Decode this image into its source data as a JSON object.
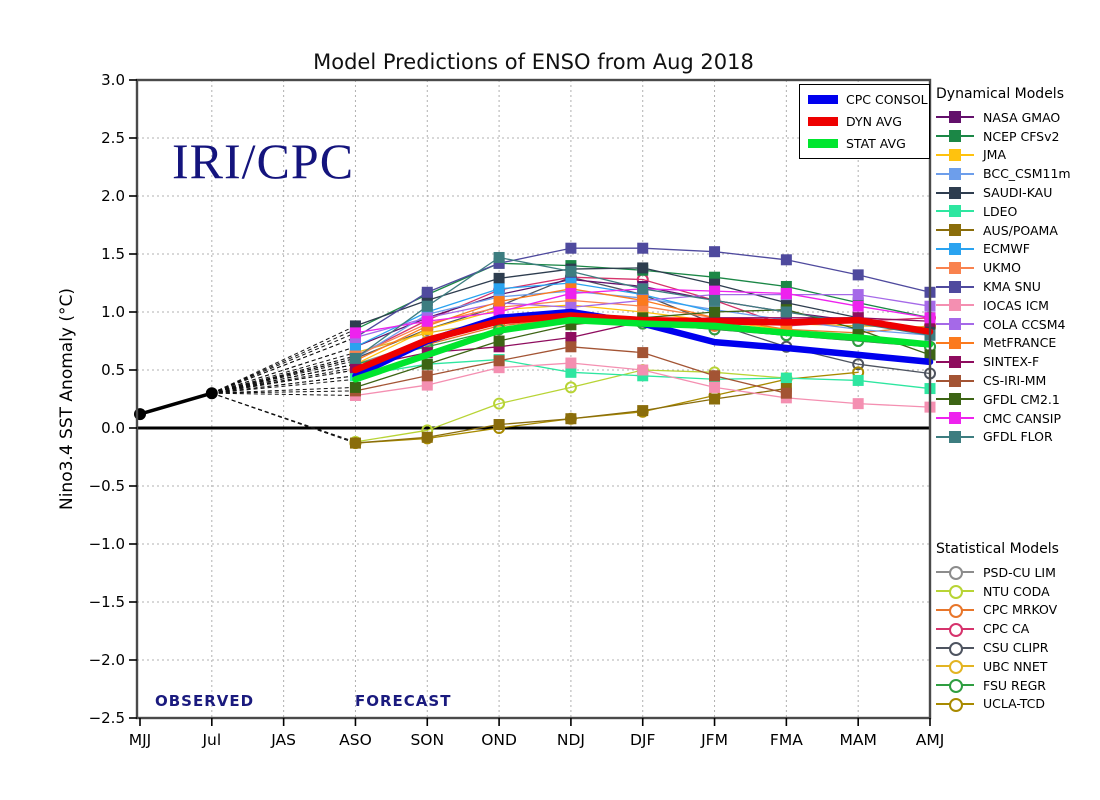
{
  "title": "Model Predictions of ENSO from Aug 2018",
  "watermark": "IRI/CPC",
  "annotations": {
    "observed": "OBSERVED",
    "forecast": "FORECAST"
  },
  "axes": {
    "ylabel": "Nino3.4 SST Anomaly (°C)",
    "x_tick_labels": [
      "MJJ",
      "Jul",
      "JAS",
      "ASO",
      "SON",
      "OND",
      "NDJ",
      "DJF",
      "JFM",
      "FMA",
      "MAM",
      "AMJ"
    ],
    "y_tick_values": [
      3.0,
      2.5,
      2.0,
      1.5,
      1.0,
      0.5,
      0.0,
      -0.5,
      -1.0,
      -1.5,
      -2.0,
      -2.5
    ],
    "y_tick_labels": [
      "3.0",
      "2.5",
      "2.0",
      "1.5",
      "1.0",
      "0.5",
      "0.0",
      "−0.5",
      "−1.0",
      "−1.5",
      "−2.0",
      "−2.5"
    ],
    "ylim": [
      -2.5,
      3.0
    ]
  },
  "legend": {
    "dynamical_header": "Dynamical Models",
    "statistical_header": "Statistical Models",
    "main": [
      {
        "label": "CPC CONSOL",
        "color": "#0000ee"
      },
      {
        "label": "DYN AVG",
        "color": "#ee0000"
      },
      {
        "label": "STAT AVG",
        "color": "#00e62e"
      }
    ]
  },
  "chart_data": {
    "type": "line",
    "title": "Model Predictions of ENSO from Aug 2018",
    "ylabel": "Nino3.4 SST Anomaly (°C)",
    "x_categories": [
      "MJJ",
      "Jul",
      "JAS",
      "ASO",
      "SON",
      "OND",
      "NDJ",
      "DJF",
      "JFM",
      "FMA",
      "MAM",
      "AMJ"
    ],
    "ylim": [
      -2.5,
      3.0
    ],
    "grid": true,
    "forecast_start_index": 3,
    "observed": {
      "name": "OBSERVED",
      "color": "#000000",
      "x": [
        "MJJ",
        "Jul"
      ],
      "values": [
        0.12,
        0.3
      ]
    },
    "series_main": [
      {
        "name": "CPC CONSOL",
        "color": "#0000ee",
        "values": [
          0.45,
          0.75,
          0.95,
          1.0,
          0.9,
          0.74,
          0.69,
          0.63,
          0.57
        ]
      },
      {
        "name": "DYN AVG",
        "color": "#ee0000",
        "values": [
          0.5,
          0.76,
          0.92,
          0.97,
          0.93,
          0.92,
          0.91,
          0.93,
          0.83
        ]
      },
      {
        "name": "STAT AVG",
        "color": "#00e62e",
        "values": [
          0.42,
          0.63,
          0.84,
          0.93,
          0.9,
          0.88,
          0.82,
          0.78,
          0.72
        ]
      }
    ],
    "dynamical_models": [
      {
        "name": "NASA GMAO",
        "color": "#63106b",
        "values": [
          0.7,
          0.95,
          1.15,
          1.28,
          1.22,
          1.1,
          1.0,
          0.92,
          0.85
        ]
      },
      {
        "name": "NCEP CFSv2",
        "color": "#1b8746",
        "values": [
          0.85,
          1.15,
          1.42,
          1.4,
          1.36,
          1.3,
          1.22,
          1.08,
          0.95
        ]
      },
      {
        "name": "JMA",
        "color": "#ffc20e",
        "values": [
          0.55,
          0.85,
          1.02,
          1.06,
          1.0,
          0.92,
          0.85,
          null,
          null
        ]
      },
      {
        "name": "BCC_CSM11m",
        "color": "#6d9eeb",
        "values": [
          0.6,
          0.98,
          1.13,
          1.18,
          1.12,
          1.02,
          0.93,
          0.85,
          0.8
        ]
      },
      {
        "name": "SAUDI-KAU",
        "color": "#2e3d4f",
        "values": [
          0.88,
          1.1,
          1.29,
          1.37,
          1.38,
          1.24,
          1.08,
          0.95,
          0.85
        ]
      },
      {
        "name": "LDEO",
        "color": "#2ee6a0",
        "values": [
          0.45,
          0.55,
          0.59,
          0.48,
          0.45,
          0.42,
          0.43,
          0.41,
          0.34
        ]
      },
      {
        "name": "AUS/POAMA",
        "color": "#8a6d0b",
        "values": [
          -0.13,
          -0.08,
          0.03,
          0.08,
          0.15,
          0.25,
          0.34,
          null,
          null
        ]
      },
      {
        "name": "ECMWF",
        "color": "#2aa3f0",
        "values": [
          0.7,
          1.0,
          1.2,
          1.25,
          1.15,
          1.0,
          null,
          null,
          null
        ]
      },
      {
        "name": "UKMO",
        "color": "#f9824e",
        "values": [
          0.62,
          0.9,
          1.04,
          1.1,
          1.05,
          0.95,
          null,
          null,
          null
        ]
      },
      {
        "name": "KMA SNU",
        "color": "#4f4a9e",
        "values": [
          0.78,
          1.17,
          1.42,
          1.55,
          1.55,
          1.52,
          1.45,
          1.32,
          1.17
        ]
      },
      {
        "name": "IOCAS ICM",
        "color": "#f48fb1",
        "values": [
          0.28,
          0.37,
          0.52,
          0.56,
          0.5,
          0.35,
          0.26,
          0.21,
          0.18
        ]
      },
      {
        "name": "COLA CCSM4",
        "color": "#a569e8",
        "values": [
          0.78,
          0.95,
          1.08,
          1.04,
          1.1,
          1.15,
          1.15,
          1.15,
          1.05
        ]
      },
      {
        "name": "MetFRANCE",
        "color": "#fb7a1e",
        "values": [
          0.58,
          0.88,
          1.09,
          1.2,
          1.1,
          0.95,
          0.85,
          null,
          null
        ]
      },
      {
        "name": "SINTEX-F",
        "color": "#8e0c5e",
        "values": [
          0.52,
          0.65,
          0.7,
          0.78,
          0.92,
          0.95,
          0.95,
          0.95,
          0.92
        ]
      },
      {
        "name": "CS-IRI-MM",
        "color": "#a35434",
        "values": [
          0.32,
          0.45,
          0.58,
          0.7,
          0.65,
          0.45,
          0.3,
          null,
          null
        ]
      },
      {
        "name": "GFDL CM2.1",
        "color": "#3c6414",
        "values": [
          0.35,
          0.55,
          0.75,
          0.89,
          0.95,
          1.0,
          1.02,
          0.85,
          0.63
        ]
      },
      {
        "name": "CMC CANSIP",
        "color": "#ee22ee",
        "values": [
          0.82,
          0.92,
          1.0,
          1.16,
          1.2,
          1.18,
          1.16,
          1.05,
          0.95
        ]
      },
      {
        "name": "GFDL FLOR",
        "color": "#3d7d80",
        "values": [
          0.6,
          1.05,
          1.47,
          1.35,
          1.2,
          1.1,
          1.0,
          0.9,
          0.8
        ]
      }
    ],
    "statistical_models": [
      {
        "name": "PSD-CU LIM",
        "color": "#8c8c8c",
        "values": [
          0.55,
          0.75,
          0.9,
          0.95,
          0.9,
          0.85,
          0.8,
          0.75,
          0.7
        ]
      },
      {
        "name": "NTU CODA",
        "color": "#b8d435",
        "values": [
          -0.12,
          -0.02,
          0.21,
          0.35,
          0.5,
          0.48,
          0.43,
          null,
          null
        ]
      },
      {
        "name": "CPC MRKOV",
        "color": "#e8762a",
        "values": [
          0.5,
          0.72,
          0.88,
          0.95,
          0.92,
          0.88,
          0.85,
          0.82,
          0.88
        ]
      },
      {
        "name": "CPC CA",
        "color": "#d6336c",
        "values": [
          0.62,
          0.93,
          1.19,
          1.3,
          1.28,
          1.1,
          0.88,
          0.92,
          0.95
        ]
      },
      {
        "name": "CSU CLIPR",
        "color": "#4e5460",
        "values": [
          0.6,
          0.85,
          1.05,
          1.3,
          1.15,
          0.9,
          0.7,
          0.55,
          0.47
        ]
      },
      {
        "name": "UBC NNET",
        "color": "#e3b422",
        "values": [
          0.65,
          0.82,
          0.92,
          0.95,
          0.92,
          0.9,
          0.9,
          0.88,
          0.87
        ]
      },
      {
        "name": "FSU REGR",
        "color": "#2f9e41",
        "values": [
          0.55,
          0.7,
          0.85,
          0.92,
          0.9,
          0.85,
          0.8,
          0.75,
          0.7
        ]
      },
      {
        "name": "UCLA-TCD",
        "color": "#a88a00",
        "values": [
          -0.13,
          -0.09,
          0.0,
          0.08,
          0.14,
          0.28,
          0.42,
          0.48,
          null
        ]
      }
    ]
  }
}
